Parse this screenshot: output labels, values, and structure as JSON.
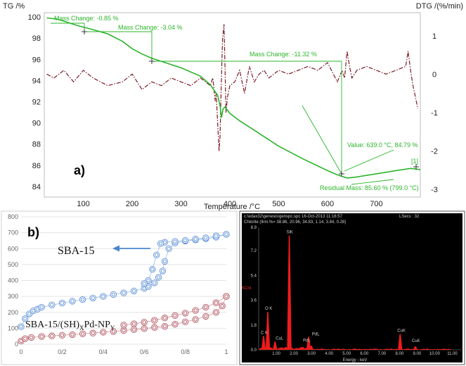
{
  "colors": {
    "tg": "#2bb52b",
    "dtg": "#7a1a22",
    "sba": "#5b8fd6",
    "pd": "#b0505c",
    "edx": "#ee1c1c"
  },
  "chart_data": [
    {
      "panel": "a)",
      "type": "line",
      "xlabel": "Temperature /°C",
      "ylabel": "TG /%",
      "y2label": "DTG /(%/min)",
      "xticks": [
        "100",
        "200",
        "300",
        "400",
        "500",
        "600",
        "700"
      ],
      "yticks": [
        "100",
        "98",
        "96",
        "94",
        "92",
        "90",
        "88",
        "86",
        "84"
      ],
      "y2ticks": [
        "1",
        "0",
        "-1",
        "-2",
        "-3"
      ],
      "xlim": [
        20,
        790
      ],
      "ylim": [
        83,
        100.4
      ],
      "y2lim": [
        -3.2,
        1.6
      ],
      "series": [
        {
          "name": "TG",
          "x": [
            25,
            45,
            60,
            80,
            95,
            120,
            150,
            180,
            200,
            220,
            240,
            260,
            300,
            340,
            360,
            375,
            380,
            383,
            386,
            390,
            400,
            420,
            450,
            500,
            550,
            600,
            620,
            640,
            660,
            700,
            740,
            770,
            790
          ],
          "y": [
            99.9,
            99.8,
            99.6,
            99.3,
            99.1,
            98.8,
            98.4,
            97.7,
            97.0,
            96.5,
            96.1,
            95.8,
            95.2,
            94.4,
            93.6,
            92.6,
            91.6,
            90.5,
            91.3,
            91.5,
            90.9,
            90.2,
            89.3,
            87.8,
            86.6,
            85.5,
            85.1,
            84.8,
            84.9,
            85.2,
            85.5,
            85.7,
            85.6
          ]
        },
        {
          "name": "DTG",
          "x": [
            25,
            40,
            60,
            80,
            100,
            120,
            150,
            180,
            200,
            220,
            240,
            260,
            280,
            300,
            320,
            340,
            350,
            360,
            365,
            370,
            372,
            375,
            378,
            380,
            382,
            385,
            388,
            390,
            392,
            395,
            400,
            410,
            420,
            430,
            440,
            450,
            460,
            470,
            480,
            500,
            520,
            540,
            560,
            580,
            600,
            620,
            630,
            635,
            640,
            645,
            650,
            660,
            680,
            700,
            720,
            740,
            760,
            765,
            770,
            775,
            780,
            785
          ],
          "y": [
            0,
            -0.1,
            0.1,
            -0.2,
            0.1,
            -0.1,
            -0.3,
            -0.2,
            0,
            -0.4,
            -0.2,
            -0.3,
            -0.1,
            -0.2,
            -0.3,
            -0.1,
            -0.2,
            -0.3,
            -0.1,
            -0.7,
            -0.5,
            -1.3,
            -2.0,
            -1.6,
            -0.5,
            0.9,
            1.3,
            0.2,
            -1.0,
            -0.6,
            -0.3,
            -0.2,
            0.1,
            -0.5,
            0.2,
            -0.2,
            0,
            0.1,
            -0.1,
            0.1,
            0,
            0.1,
            0.2,
            0.1,
            0.3,
            -0.2,
            0.1,
            -0.1,
            0.6,
            0.2,
            -0.1,
            0.1,
            0.2,
            0.1,
            0,
            0.1,
            0.2,
            0.6,
            0.1,
            -0.3,
            -0.6,
            -0.9
          ]
        }
      ],
      "annotations": [
        "Mass Change: -0.85 %",
        "Mass Change: -3.04 %",
        "Mass Change: -11.32 %",
        "Value: 639.0 °C, 84.79 %",
        "Residual Mass: 85.60 % (799.0 °C)",
        "[1]"
      ]
    },
    {
      "panel": "b)",
      "type": "line",
      "xticks": [
        "0",
        "0/2",
        "0/4",
        "0/6",
        "0/8",
        "1"
      ],
      "yticks": [
        "800",
        "700",
        "600",
        "500",
        "400",
        "300",
        "200",
        "100",
        "0"
      ],
      "xlim": [
        0,
        1
      ],
      "ylim": [
        0,
        800
      ],
      "series_labels": [
        "SBA-15",
        "SBA-15/(SH)",
        "X",
        "Pd-NP",
        "Y"
      ],
      "series": [
        {
          "name": "SBA-15 adsorption",
          "x": [
            0,
            0.02,
            0.04,
            0.06,
            0.08,
            0.1,
            0.15,
            0.2,
            0.25,
            0.3,
            0.35,
            0.4,
            0.45,
            0.5,
            0.55,
            0.6,
            0.62,
            0.65,
            0.67,
            0.69,
            0.7,
            0.72,
            0.75,
            0.8,
            0.85,
            0.9,
            0.95,
            1.0
          ],
          "y": [
            110,
            160,
            190,
            210,
            220,
            232,
            246,
            258,
            270,
            280,
            290,
            300,
            312,
            322,
            334,
            350,
            362,
            385,
            420,
            460,
            520,
            600,
            635,
            648,
            655,
            662,
            672,
            690
          ]
        },
        {
          "name": "SBA-15 desorption",
          "x": [
            1.0,
            0.95,
            0.9,
            0.85,
            0.8,
            0.75,
            0.7,
            0.68,
            0.66,
            0.64,
            0.62,
            0.6
          ],
          "y": [
            690,
            680,
            668,
            660,
            652,
            645,
            640,
            632,
            560,
            470,
            400,
            380
          ]
        },
        {
          "name": "SBA-15/(SH)XPd-NPY adsorption",
          "x": [
            0,
            0.02,
            0.05,
            0.1,
            0.15,
            0.2,
            0.25,
            0.3,
            0.35,
            0.4,
            0.45,
            0.5,
            0.55,
            0.6,
            0.65,
            0.7,
            0.75,
            0.8,
            0.85,
            0.9,
            0.95,
            0.98,
            1.0
          ],
          "y": [
            20,
            35,
            42,
            48,
            52,
            56,
            60,
            65,
            70,
            75,
            80,
            86,
            92,
            98,
            105,
            112,
            125,
            140,
            155,
            175,
            200,
            240,
            300
          ]
        },
        {
          "name": "SBA-15/(SH)XPd-NPY desorption",
          "x": [
            1.0,
            0.95,
            0.9,
            0.85,
            0.8,
            0.75,
            0.7,
            0.65,
            0.6,
            0.55,
            0.5
          ],
          "y": [
            300,
            260,
            232,
            212,
            195,
            180,
            165,
            150,
            138,
            128,
            120
          ]
        }
      ]
    },
    {
      "panel": "c)",
      "type": "bar",
      "header": [
        "c:\\edax32\\genesis\\genspc.spc 16-Oct-2013 11:16:57",
        "LSecs : 32"
      ],
      "subheader": "Chlorite (Ilrm.%= 38.86, 20.96, 34.83, 1.14, 3.84, 0.28)",
      "ylabel": "KCnt",
      "xlabel": "Energy - keV",
      "yticks": [
        "8.9",
        "7.2",
        "5.4",
        "3.6",
        "1.8",
        "0.0"
      ],
      "xticks": [
        "1.00",
        "2.00",
        "3.00",
        "4.00",
        "5.00",
        "6.00",
        "7.00",
        "8.00",
        "9.00",
        "10.00",
        "11.00"
      ],
      "xlim": [
        0,
        11.5
      ],
      "ylim": [
        0,
        8.9
      ],
      "peaks": [
        {
          "label": "C K",
          "x": 0.28,
          "y": 1.0
        },
        {
          "label": "O K",
          "x": 0.52,
          "y": 2.75
        },
        {
          "label": "CuL",
          "x": 0.93,
          "y": 0.6
        },
        {
          "label": "SiK",
          "x": 1.74,
          "y": 8.3
        },
        {
          "label": "PdL",
          "x": 2.84,
          "y": 0.95
        },
        {
          "label": "PdL",
          "x": 2.99,
          "y": 0.3
        },
        {
          "label": "CuK",
          "x": 8.04,
          "y": 1.15
        },
        {
          "label": "CuK",
          "x": 8.9,
          "y": 0.25
        }
      ]
    }
  ]
}
